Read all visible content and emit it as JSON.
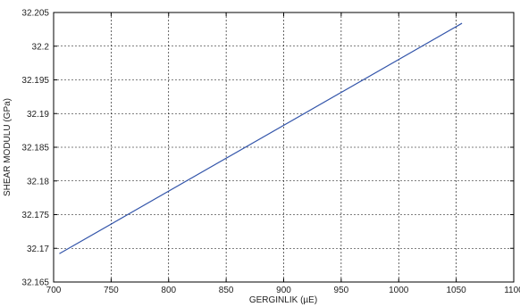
{
  "chart_data": {
    "type": "line",
    "title": "",
    "xlabel": "GERGINLIK (µE)",
    "ylabel": "SHEAR MODULU (GPa)",
    "xlim": [
      700,
      1100
    ],
    "ylim": [
      32.165,
      32.205
    ],
    "x_ticks": [
      "700",
      "750",
      "800",
      "850",
      "900",
      "950",
      "1000",
      "1050",
      "1100"
    ],
    "y_ticks": [
      "32.165",
      "32.17",
      "32.175",
      "32.18",
      "32.185",
      "32.19",
      "32.195",
      "32.2",
      "32.205"
    ],
    "grid": true,
    "grid_style": "dotted",
    "series": [
      {
        "color": "#3355aa",
        "x": [
          705,
          1055
        ],
        "y": [
          32.1692,
          32.2034
        ]
      }
    ]
  }
}
